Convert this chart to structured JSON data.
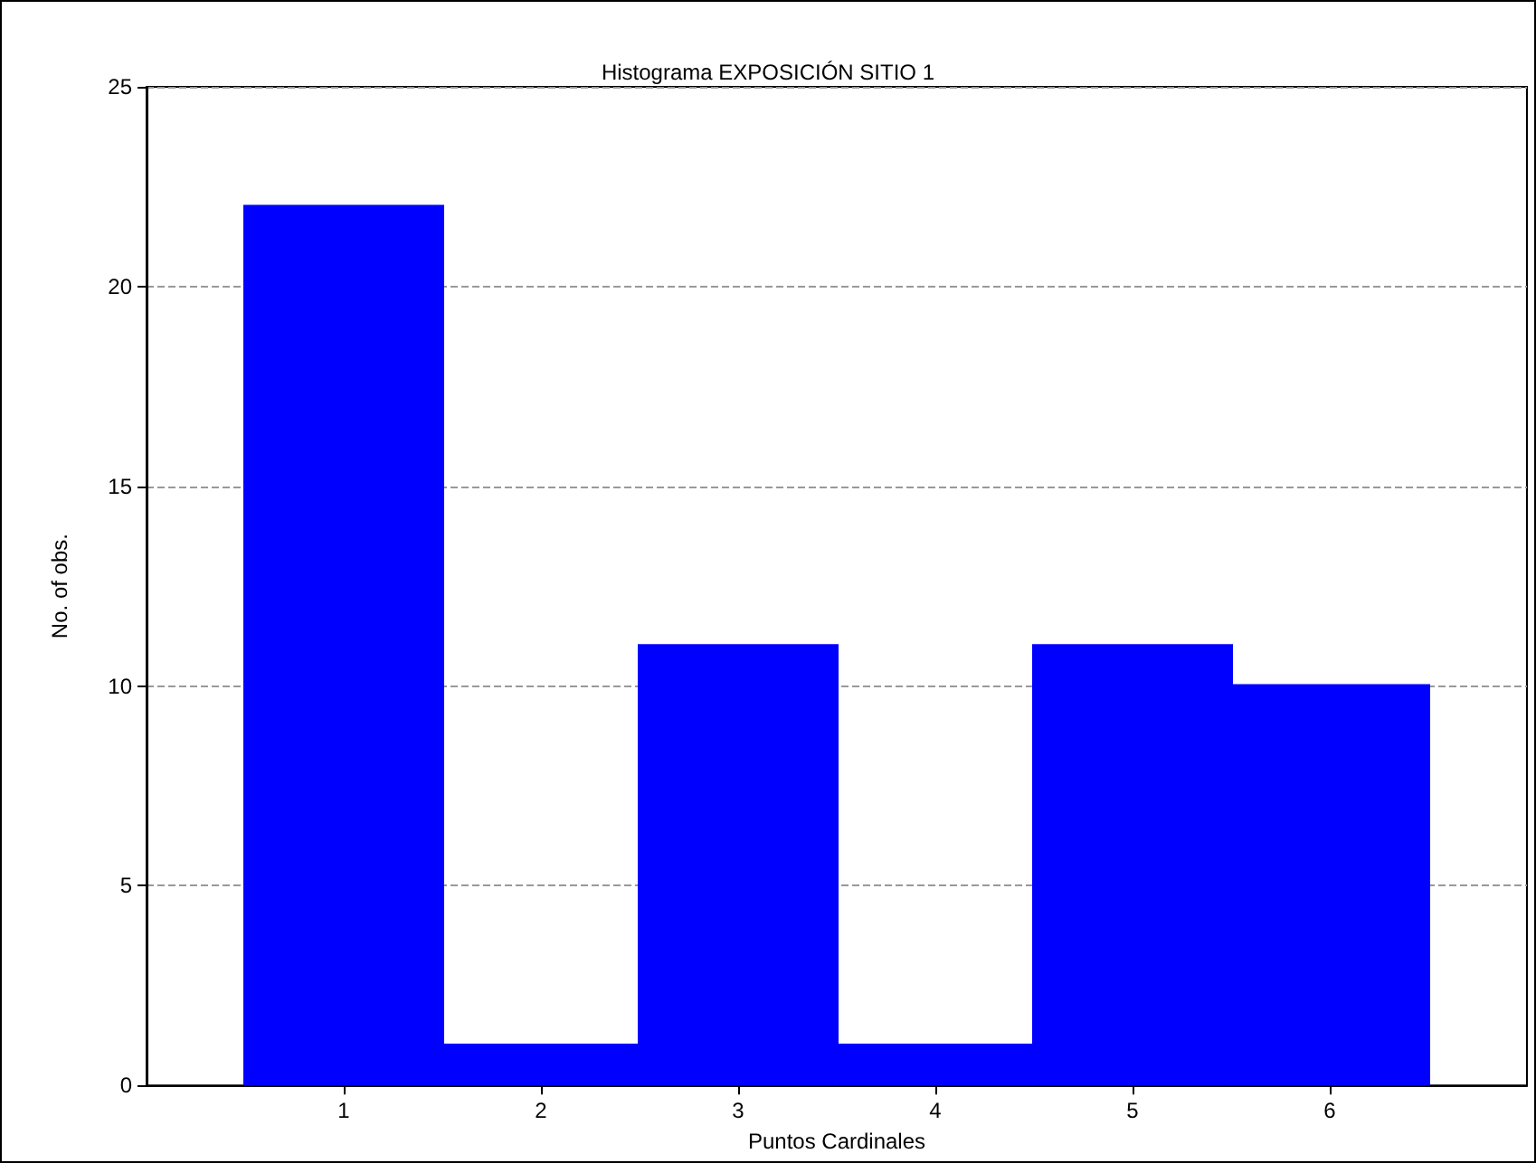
{
  "chart_data": {
    "type": "histogram",
    "title": "Histograma EXPOSICIÓN SITIO 1",
    "xlabel": "Puntos Cardinales",
    "ylabel": "No. of obs.",
    "bins": [
      0.5,
      1.5,
      2.5,
      3.5,
      4.5,
      5.5,
      6.5
    ],
    "values": [
      22,
      1,
      11,
      1,
      11,
      10
    ],
    "color": "#0000ff",
    "xlim": [
      0,
      7
    ],
    "xticks": [
      1,
      2,
      3,
      4,
      5,
      6
    ],
    "ylim": [
      0,
      25
    ],
    "yticks": [
      0,
      5,
      10,
      15,
      20,
      25
    ],
    "grid": "y"
  }
}
